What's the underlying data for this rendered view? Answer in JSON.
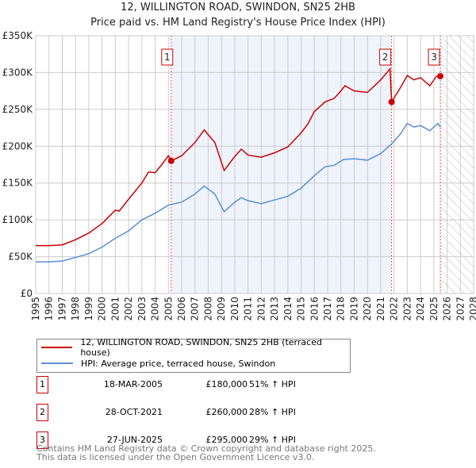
{
  "chart_data": {
    "type": "line",
    "title": "12, WILLINGTON ROAD, SWINDON, SN25 2HB",
    "subtitle": "Price paid vs. HM Land Registry's House Price Index (HPI)",
    "xlim": [
      1995,
      2028
    ],
    "ylim": [
      0,
      350000
    ],
    "yticks": [
      0,
      50000,
      100000,
      150000,
      200000,
      250000,
      300000,
      350000
    ],
    "ytick_labels": [
      "£0",
      "£50K",
      "£100K",
      "£150K",
      "£200K",
      "£250K",
      "£300K",
      "£350K"
    ],
    "xticks": [
      "1995",
      "1996",
      "1997",
      "1998",
      "1999",
      "2000",
      "2001",
      "2002",
      "2003",
      "2004",
      "2005",
      "2006",
      "2007",
      "2008",
      "2009",
      "2010",
      "2011",
      "2012",
      "2013",
      "2014",
      "2015",
      "2016",
      "2017",
      "2018",
      "2019",
      "2020",
      "2021",
      "2022",
      "2023",
      "2024",
      "2025",
      "2026",
      "2027",
      "2028"
    ],
    "grid": true,
    "shaded_ranges": [
      [
        2005.21,
        2021.82
      ],
      [
        2025.49,
        2025.6
      ]
    ],
    "forecast_hatch_from": 2025.6,
    "series": [
      {
        "name": "12, WILLINGTON ROAD, SWINDON, SN25 2HB (terraced house)",
        "color": "#cc0000",
        "points": [
          [
            1995,
            65000
          ],
          [
            1996,
            65000
          ],
          [
            1997,
            66000
          ],
          [
            1998,
            73000
          ],
          [
            1999,
            82000
          ],
          [
            2000,
            95000
          ],
          [
            2001,
            113000
          ],
          [
            2001.3,
            112000
          ],
          [
            2002,
            128000
          ],
          [
            2003,
            150000
          ],
          [
            2003.5,
            165000
          ],
          [
            2004,
            164000
          ],
          [
            2004.5,
            175000
          ],
          [
            2005,
            187000
          ],
          [
            2005.21,
            180000
          ],
          [
            2006,
            187000
          ],
          [
            2007,
            205000
          ],
          [
            2007.7,
            222000
          ],
          [
            2008.5,
            205000
          ],
          [
            2009.2,
            167000
          ],
          [
            2010,
            186000
          ],
          [
            2010.5,
            196000
          ],
          [
            2011,
            188000
          ],
          [
            2012,
            185000
          ],
          [
            2013,
            191000
          ],
          [
            2014,
            199000
          ],
          [
            2015,
            218000
          ],
          [
            2015.5,
            230000
          ],
          [
            2016,
            247000
          ],
          [
            2016.8,
            260000
          ],
          [
            2017.5,
            265000
          ],
          [
            2018,
            275000
          ],
          [
            2018.3,
            282000
          ],
          [
            2019,
            275000
          ],
          [
            2020,
            273000
          ],
          [
            2021,
            290000
          ],
          [
            2021.7,
            305000
          ],
          [
            2021.82,
            260000
          ],
          [
            2022.5,
            280000
          ],
          [
            2023,
            296000
          ],
          [
            2023.5,
            290000
          ],
          [
            2024,
            293000
          ],
          [
            2024.7,
            282000
          ],
          [
            2025.2,
            295000
          ],
          [
            2025.49,
            295000
          ]
        ]
      },
      {
        "name": "HPI: Average price, terraced house, Swindon",
        "color": "#5b8fd4",
        "points": [
          [
            1995,
            43000
          ],
          [
            1996,
            43000
          ],
          [
            1997,
            44000
          ],
          [
            1998,
            49000
          ],
          [
            1999,
            54000
          ],
          [
            2000,
            63000
          ],
          [
            2001,
            75000
          ],
          [
            2002,
            85000
          ],
          [
            2003,
            100000
          ],
          [
            2004,
            109000
          ],
          [
            2005,
            120000
          ],
          [
            2006,
            124000
          ],
          [
            2007,
            135000
          ],
          [
            2007.7,
            146000
          ],
          [
            2008.5,
            135000
          ],
          [
            2009.2,
            111000
          ],
          [
            2010,
            124000
          ],
          [
            2010.5,
            130000
          ],
          [
            2011,
            126000
          ],
          [
            2012,
            122000
          ],
          [
            2013,
            127000
          ],
          [
            2014,
            132000
          ],
          [
            2015,
            143000
          ],
          [
            2016,
            160000
          ],
          [
            2016.8,
            172000
          ],
          [
            2017.5,
            174000
          ],
          [
            2018.2,
            182000
          ],
          [
            2019,
            183000
          ],
          [
            2020,
            181000
          ],
          [
            2021,
            190000
          ],
          [
            2021.82,
            203000
          ],
          [
            2022.5,
            217000
          ],
          [
            2023,
            231000
          ],
          [
            2023.5,
            226000
          ],
          [
            2024,
            228000
          ],
          [
            2024.7,
            221000
          ],
          [
            2025.3,
            231000
          ],
          [
            2025.5,
            226000
          ]
        ]
      }
    ],
    "sales": [
      {
        "label": "1",
        "x": 2005.21,
        "y": 180000,
        "date": "18-MAR-2005",
        "price": "£180,000",
        "hpi": "51% ↑ HPI"
      },
      {
        "label": "2",
        "x": 2021.82,
        "y": 260000,
        "date": "28-OCT-2021",
        "price": "£260,000",
        "hpi": "28% ↑ HPI"
      },
      {
        "label": "3",
        "x": 2025.49,
        "y": 295000,
        "date": "27-JUN-2025",
        "price": "£295,000",
        "hpi": "29% ↑ HPI"
      }
    ]
  },
  "footer": [
    "Contains HM Land Registry data © Crown copyright and database right 2025.",
    "This data is licensed under the Open Government Licence v3.0."
  ]
}
